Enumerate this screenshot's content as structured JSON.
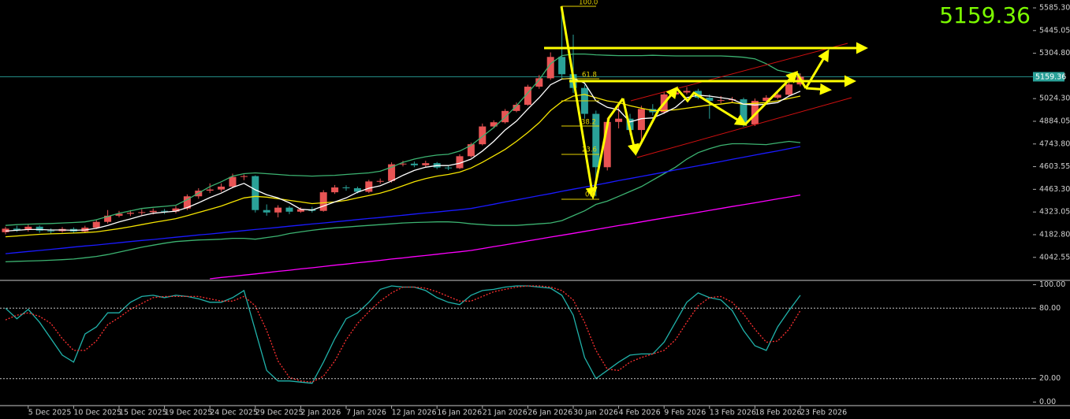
{
  "chart_data": [
    {
      "type": "candlestick",
      "categories": [
        null,
        null,
        "5 Dec 2025",
        null,
        null,
        null,
        "10 Dec 2025",
        null,
        null,
        null,
        "15 Dec 2025",
        null,
        null,
        null,
        "19 Dec 2025",
        null,
        null,
        null,
        "24 Dec 2025",
        null,
        null,
        null,
        "29 Dec 2025",
        null,
        null,
        null,
        "2 Jan 2026",
        null,
        null,
        null,
        "7 Jan 2026",
        null,
        null,
        null,
        "12 Jan 2026",
        null,
        null,
        null,
        "16 Jan 2026",
        null,
        null,
        null,
        "21 Jan 2026",
        null,
        null,
        null,
        "26 Jan 2026",
        null,
        null,
        null,
        "30 Jan 2026",
        null,
        null,
        null,
        "4 Feb 2026",
        null,
        null,
        null,
        "9 Feb 2026",
        null,
        null,
        null,
        "13 Feb 2026",
        null,
        null,
        null,
        "18 Feb 2026",
        null,
        null,
        null,
        "23 Feb 2026"
      ],
      "open": [
        4198,
        4220,
        4212,
        4232,
        4208,
        4205,
        4218,
        4203,
        4226,
        4262,
        4300,
        4312,
        4318,
        4322,
        4330,
        4326,
        4345,
        4420,
        4455,
        4462,
        4480,
        4540,
        4545,
        4335,
        4320,
        4350,
        4325,
        4340,
        4330,
        4445,
        4475,
        4470,
        4448,
        4512,
        4515,
        4618,
        4622,
        4612,
        4625,
        4598,
        4594,
        4668,
        4742,
        4852,
        4878,
        4948,
        4986,
        5098,
        5150,
        5282,
        5175,
        5090,
        4930,
        4600,
        4880,
        4900,
        4830,
        4960,
        4940,
        5050,
        5062,
        5072,
        5030,
        5010,
        5015,
        5020,
        4865,
        5010,
        5030,
        5048,
        5112
      ],
      "high": [
        4232,
        4238,
        4245,
        4240,
        4222,
        4230,
        4228,
        4238,
        4275,
        4335,
        4330,
        4335,
        4340,
        4345,
        4342,
        4360,
        4432,
        4470,
        4500,
        4500,
        4560,
        4555,
        4550,
        4370,
        4365,
        4360,
        4352,
        4355,
        4458,
        4490,
        4488,
        4480,
        4522,
        4530,
        4630,
        4640,
        4635,
        4640,
        4632,
        4610,
        4680,
        4752,
        4870,
        4890,
        4960,
        5000,
        5110,
        5170,
        5310,
        5590,
        5420,
        5110,
        4950,
        4905,
        4990,
        4930,
        4980,
        4990,
        5065,
        5080,
        5095,
        5085,
        5050,
        5040,
        5035,
        5030,
        5025,
        5045,
        5065,
        5125,
        5180
      ],
      "low": [
        4185,
        4200,
        4202,
        4195,
        4190,
        4196,
        4190,
        4195,
        4218,
        4252,
        4290,
        4298,
        4305,
        4308,
        4310,
        4315,
        4335,
        4405,
        4440,
        4448,
        4470,
        4520,
        4320,
        4300,
        4290,
        4310,
        4318,
        4320,
        4325,
        4435,
        4455,
        4438,
        4440,
        4498,
        4505,
        4605,
        4600,
        4602,
        4588,
        4582,
        4588,
        4660,
        4735,
        4840,
        4870,
        4940,
        4980,
        5085,
        5140,
        5150,
        5060,
        4900,
        4420,
        4580,
        4840,
        4800,
        4760,
        4920,
        4930,
        5040,
        5050,
        5020,
        4900,
        4995,
        5000,
        4850,
        4855,
        5000,
        5020,
        5040,
        5100
      ],
      "close": [
        4220,
        4212,
        4232,
        4208,
        4205,
        4218,
        4203,
        4226,
        4262,
        4300,
        4312,
        4318,
        4322,
        4330,
        4326,
        4345,
        4420,
        4455,
        4462,
        4480,
        4540,
        4545,
        4335,
        4320,
        4350,
        4325,
        4340,
        4330,
        4445,
        4475,
        4470,
        4448,
        4512,
        4515,
        4618,
        4622,
        4612,
        4625,
        4598,
        4594,
        4668,
        4742,
        4852,
        4878,
        4948,
        4986,
        5098,
        5150,
        5282,
        5175,
        5090,
        4930,
        4600,
        4880,
        4900,
        4830,
        4960,
        4940,
        5050,
        5062,
        5072,
        5030,
        5010,
        5015,
        5020,
        4865,
        5010,
        5030,
        5048,
        5112,
        5159.36
      ],
      "up_color": "#e85454",
      "down_color": "#2aa198",
      "current_price": 5159.36,
      "ylim": [
        3905,
        5634
      ],
      "yticks": [
        {
          "value": 5585.3,
          "label": "5585.30"
        },
        {
          "value": 5445.05,
          "label": "5445.05"
        },
        {
          "value": 5304.8,
          "label": "5304.80"
        },
        {
          "value": 5024.3,
          "label": "5024.30"
        },
        {
          "value": 4884.05,
          "label": "4884.05"
        },
        {
          "value": 4743.8,
          "label": "4743.80"
        },
        {
          "value": 4603.55,
          "label": "4603.55"
        },
        {
          "value": 4463.3,
          "label": "4463.30"
        },
        {
          "value": 4323.05,
          "label": "4323.05"
        },
        {
          "value": 4182.8,
          "label": "4182.80"
        },
        {
          "value": 4042.55,
          "label": "4042.55"
        }
      ],
      "lines": [
        {
          "color": "#3cb371",
          "values": [
            4240,
            4245,
            4248,
            4250,
            4252,
            4255,
            4258,
            4262,
            4275,
            4295,
            4315,
            4330,
            4345,
            4352,
            4358,
            4365,
            4400,
            4440,
            4480,
            4510,
            4545,
            4560,
            4565,
            4560,
            4555,
            4550,
            4548,
            4545,
            4548,
            4550,
            4555,
            4560,
            4565,
            4575,
            4600,
            4630,
            4650,
            4665,
            4675,
            4680,
            4700,
            4735,
            4790,
            4845,
            4910,
            4980,
            5060,
            5140,
            5240,
            5290,
            5300,
            5300,
            5295,
            5292,
            5290,
            5290,
            5290,
            5292,
            5290,
            5288,
            5288,
            5288,
            5288,
            5288,
            5285,
            5280,
            5270,
            5240,
            5200,
            5185,
            5175
          ]
        },
        {
          "color": "#3cb371",
          "values": [
            4015,
            4018,
            4020,
            4022,
            4025,
            4028,
            4032,
            4040,
            4048,
            4060,
            4075,
            4090,
            4105,
            4118,
            4130,
            4140,
            4145,
            4150,
            4152,
            4155,
            4160,
            4160,
            4155,
            4165,
            4175,
            4190,
            4200,
            4210,
            4218,
            4225,
            4230,
            4235,
            4240,
            4245,
            4250,
            4255,
            4258,
            4260,
            4262,
            4262,
            4258,
            4250,
            4245,
            4240,
            4240,
            4240,
            4245,
            4250,
            4255,
            4270,
            4300,
            4330,
            4370,
            4390,
            4420,
            4450,
            4480,
            4520,
            4560,
            4600,
            4650,
            4690,
            4715,
            4735,
            4745,
            4745,
            4742,
            4740,
            4750,
            4760,
            4752
          ]
        },
        {
          "color": "#1a1aff",
          "values": [
            4065,
            4072,
            4079,
            4085,
            4092,
            4099,
            4106,
            4113,
            4119,
            4126,
            4133,
            4140,
            4147,
            4153,
            4160,
            4167,
            4174,
            4181,
            4187,
            4194,
            4201,
            4208,
            4215,
            4221,
            4228,
            4235,
            4242,
            4249,
            4255,
            4262,
            4269,
            4276,
            4283,
            4289,
            4296,
            4303,
            4310,
            4317,
            4323,
            4330,
            4337,
            4345,
            4358,
            4371,
            4385,
            4398,
            4411,
            4424,
            4437,
            4451,
            4464,
            4477,
            4490,
            4503,
            4517,
            4530,
            4543,
            4556,
            4569,
            4583,
            4596,
            4609,
            4622,
            4635,
            4649,
            4662,
            4675,
            4688,
            4701,
            4715,
            4728
          ]
        },
        {
          "color": "#ff00ff",
          "values": [
            null,
            null,
            null,
            null,
            null,
            null,
            null,
            null,
            null,
            null,
            null,
            null,
            null,
            null,
            null,
            null,
            null,
            null,
            3910,
            3918,
            3925,
            3933,
            3940,
            3948,
            3956,
            3963,
            3971,
            3978,
            3986,
            3994,
            4001,
            4009,
            4016,
            4024,
            4032,
            4039,
            4047,
            4054,
            4062,
            4070,
            4077,
            4085,
            4097,
            4109,
            4120,
            4132,
            4144,
            4156,
            4168,
            4179,
            4191,
            4203,
            4215,
            4227,
            4239,
            4250,
            4262,
            4274,
            4286,
            4298,
            4309,
            4321,
            4333,
            4345,
            4357,
            4368,
            4380,
            4392,
            4404,
            4416,
            4428
          ]
        },
        {
          "color": "#f5e400",
          "values": [
            4170,
            4175,
            4180,
            4185,
            4188,
            4190,
            4193,
            4196,
            4200,
            4210,
            4220,
            4232,
            4245,
            4258,
            4270,
            4282,
            4300,
            4320,
            4340,
            4360,
            4385,
            4410,
            4420,
            4415,
            4405,
            4395,
            4385,
            4375,
            4380,
            4385,
            4395,
            4410,
            4425,
            4440,
            4460,
            4485,
            4510,
            4530,
            4545,
            4555,
            4570,
            4595,
            4630,
            4670,
            4710,
            4760,
            4815,
            4875,
            4950,
            5005,
            5040,
            5050,
            5030,
            5010,
            5000,
            4980,
            4965,
            4950,
            4950,
            4955,
            4965,
            4975,
            4985,
            4990,
            5000,
            4990,
            4995,
            5000,
            5010,
            5025,
            5040
          ]
        },
        {
          "color": "#ffffff",
          "values": [
            4205,
            4210,
            4215,
            4215,
            4212,
            4212,
            4210,
            4212,
            4222,
            4240,
            4262,
            4280,
            4300,
            4315,
            4322,
            4328,
            4350,
            4380,
            4412,
            4440,
            4475,
            4500,
            4460,
            4430,
            4410,
            4380,
            4340,
            4335,
            4360,
            4385,
            4410,
            4445,
            4470,
            4485,
            4515,
            4550,
            4580,
            4600,
            4610,
            4610,
            4625,
            4650,
            4700,
            4760,
            4830,
            4885,
            4960,
            5030,
            5110,
            5145,
            5150,
            5120,
            5010,
            4970,
            4955,
            4880,
            4900,
            4905,
            4935,
            4970,
            5030,
            5045,
            5040,
            5030,
            5020,
            4990,
            4985,
            4990,
            5000,
            5040,
            5070
          ]
        }
      ],
      "fib_labels": [
        "100.0",
        "61.8",
        "38.2",
        "23.6",
        "0.0"
      ]
    },
    {
      "type": "line",
      "ylim": [
        -3,
        103
      ],
      "yticks": [
        {
          "value": 100,
          "label": "100.00"
        },
        {
          "value": 80,
          "label": "80.00"
        },
        {
          "value": 20,
          "label": "20.00"
        },
        {
          "value": 0,
          "label": "0.00"
        }
      ],
      "levels": [
        80,
        20
      ],
      "series": [
        {
          "color": "#20b2aa",
          "dashed": false,
          "values": [
            80,
            71,
            79,
            68,
            54,
            40,
            34,
            58,
            64,
            76,
            76,
            85,
            90,
            91,
            89,
            91,
            90,
            88,
            85,
            85,
            89,
            95,
            61,
            27,
            18,
            18,
            17,
            16,
            34,
            54,
            71,
            76,
            85,
            96,
            99,
            98,
            98,
            95,
            89,
            85,
            83,
            91,
            95,
            96,
            98,
            99,
            99,
            98,
            97,
            91,
            74,
            38,
            20,
            27,
            34,
            40,
            41,
            41,
            51,
            68,
            85,
            93,
            89,
            87,
            78,
            61,
            48,
            44,
            64,
            78,
            91
          ]
        },
        {
          "color": "#ff3030",
          "dashed": true,
          "values": [
            70,
            74,
            76,
            73,
            67,
            54,
            44,
            44,
            52,
            66,
            72,
            79,
            84,
            89,
            90,
            90,
            90,
            90,
            88,
            86,
            86,
            90,
            82,
            61,
            35,
            21,
            18,
            17,
            22,
            35,
            53,
            67,
            77,
            86,
            93,
            98,
            98,
            97,
            94,
            90,
            86,
            86,
            90,
            94,
            96,
            98,
            99,
            99,
            98,
            95,
            87,
            68,
            44,
            28,
            27,
            34,
            38,
            41,
            44,
            53,
            68,
            82,
            89,
            90,
            85,
            75,
            62,
            51,
            52,
            62,
            78
          ]
        }
      ]
    }
  ]
}
